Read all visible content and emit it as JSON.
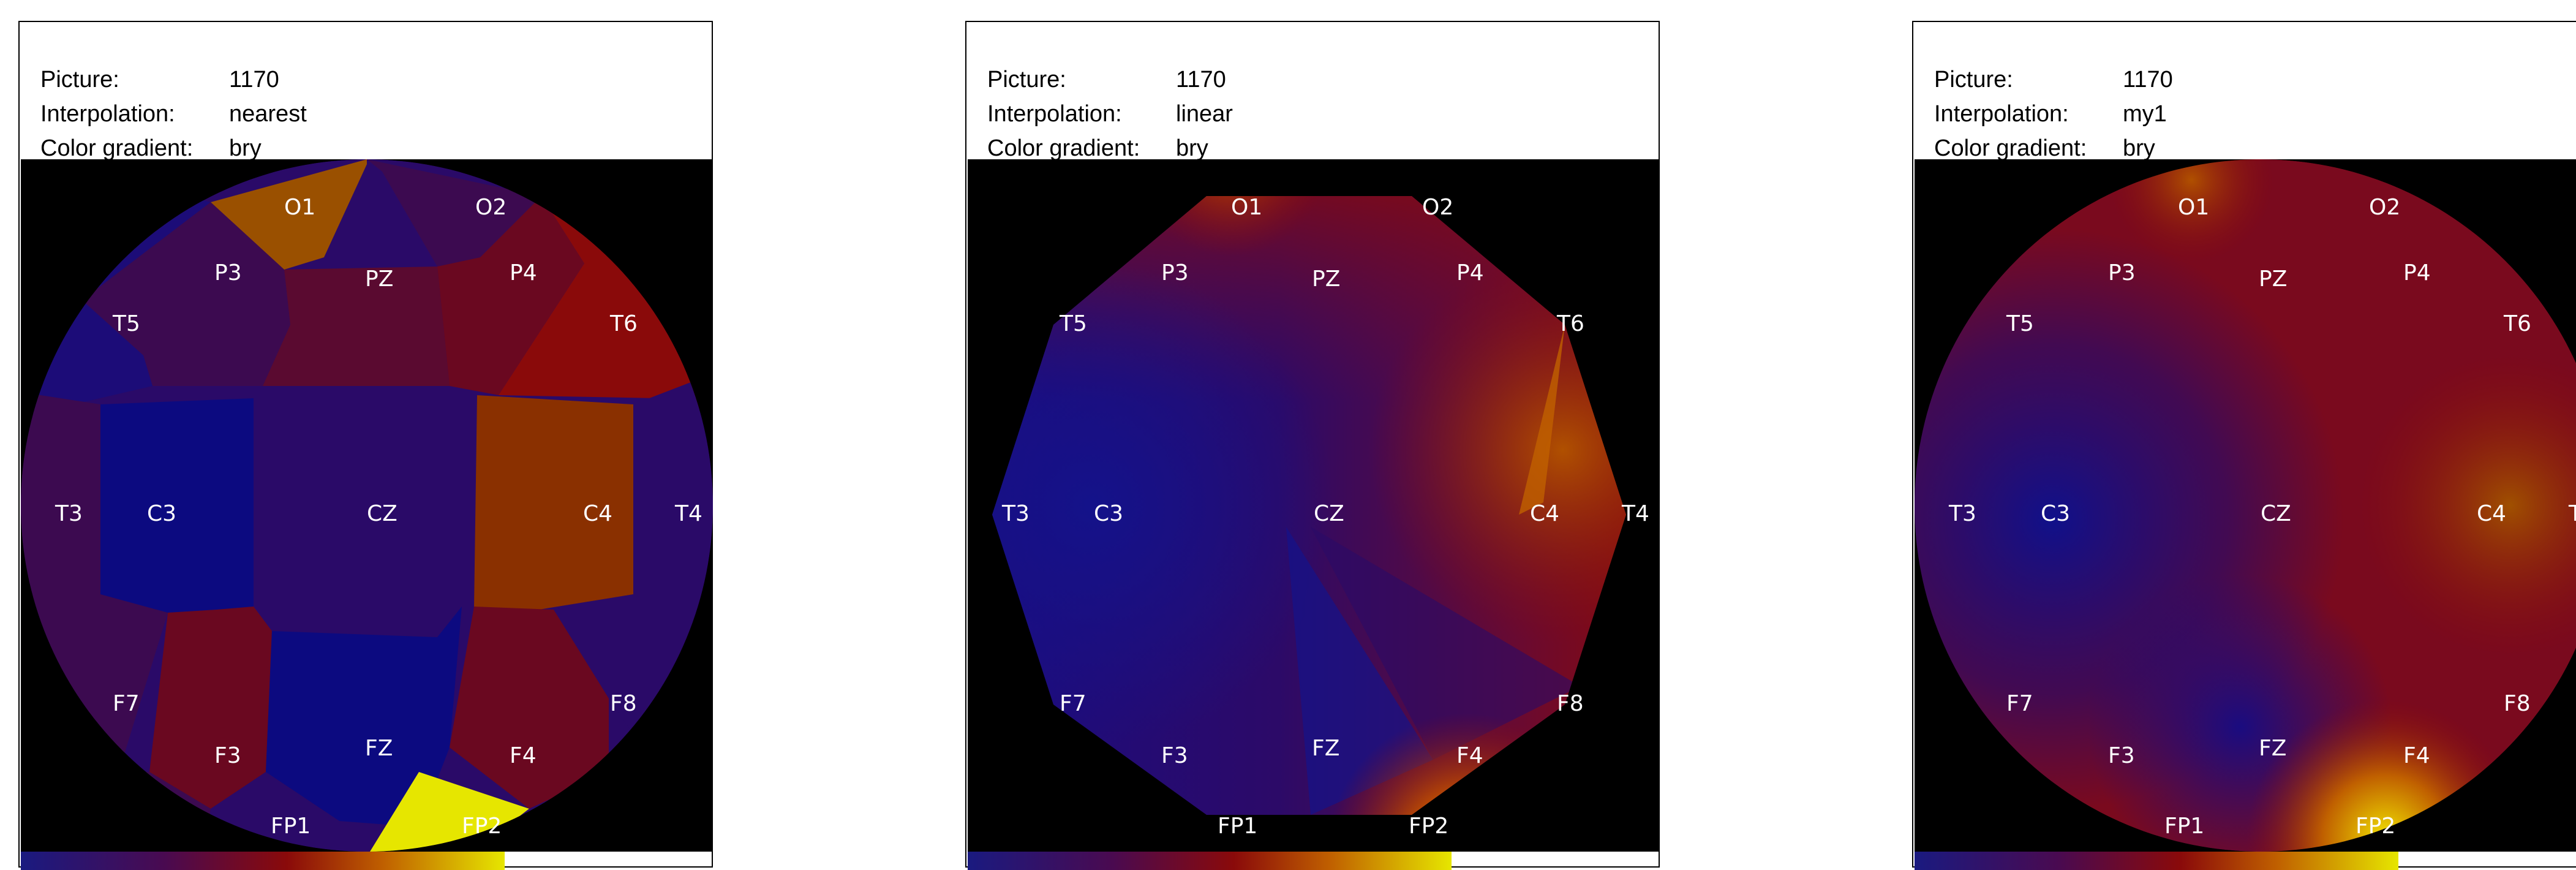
{
  "panels": [
    {
      "picture_label": "Picture:",
      "picture_value": "1170",
      "interpolation_label": "Interpolation:",
      "interpolation_value": "nearest",
      "gradient_label": "Color gradient:",
      "gradient_value": "bry"
    },
    {
      "picture_label": "Picture:",
      "picture_value": "1170",
      "interpolation_label": "Interpolation:",
      "interpolation_value": "linear",
      "gradient_label": "Color gradient:",
      "gradient_value": "bry"
    },
    {
      "picture_label": "Picture:",
      "picture_value": "1170",
      "interpolation_label": "Interpolation:",
      "interpolation_value": "my1",
      "gradient_label": "Color gradient:",
      "gradient_value": "bry"
    }
  ],
  "electrodes": [
    "O1",
    "O2",
    "P3",
    "PZ",
    "P4",
    "T5",
    "T6",
    "T3",
    "C3",
    "CZ",
    "C4",
    "T4",
    "F7",
    "F8",
    "F3",
    "FZ",
    "F4",
    "FP1",
    "FP2"
  ],
  "colors": {
    "background": "#000000",
    "navy": "#0c0a80",
    "indigo": "#2a0a68",
    "plum": "#3c0a50",
    "maroon": "#6a0820",
    "red": "#8a0a0a",
    "brown": "#8a3000",
    "ochre": "#9a5000",
    "yellow": "#e6e600"
  }
}
